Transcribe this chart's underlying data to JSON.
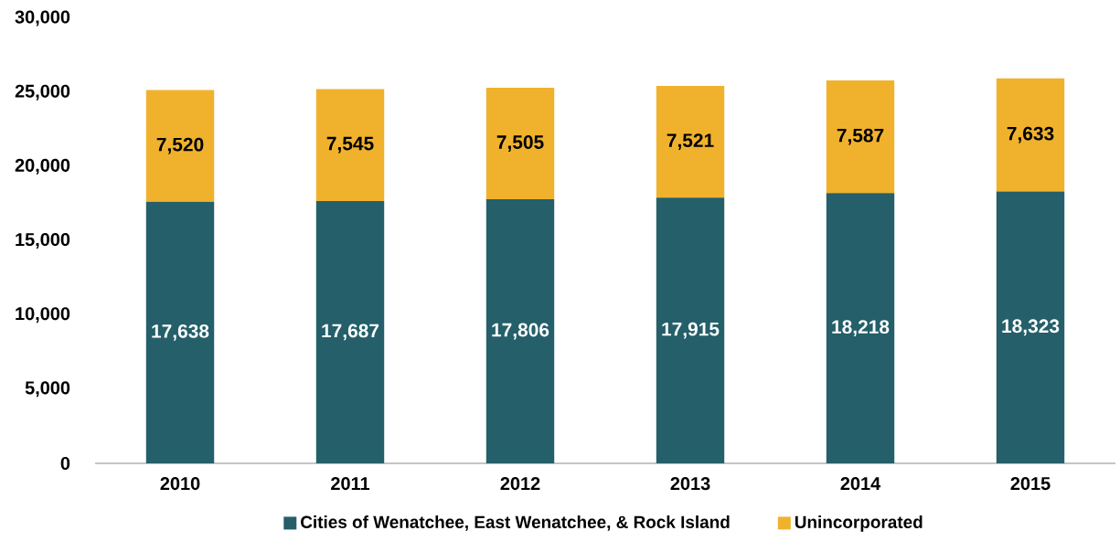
{
  "chart_data": {
    "type": "bar",
    "stacked": true,
    "categories": [
      "2010",
      "2011",
      "2012",
      "2013",
      "2014",
      "2015"
    ],
    "series": [
      {
        "name": "Cities of Wenatchee, East Wenatchee, & Rock Island",
        "color": "#245f6a",
        "values": [
          17638,
          17687,
          17806,
          17915,
          18218,
          18323
        ],
        "value_labels": [
          "17,638",
          "17,687",
          "17,806",
          "17,915",
          "18,218",
          "18,323"
        ]
      },
      {
        "name": "Unincorporated",
        "color": "#f0b22d",
        "values": [
          7520,
          7545,
          7505,
          7521,
          7587,
          7633
        ],
        "value_labels": [
          "7,520",
          "7,545",
          "7,505",
          "7,521",
          "7,587",
          "7,633"
        ]
      }
    ],
    "ylim": [
      0,
      30000
    ],
    "yticks": [
      {
        "value": 0,
        "label": "0"
      },
      {
        "value": 5000,
        "label": "5,000"
      },
      {
        "value": 10000,
        "label": "10,000"
      },
      {
        "value": 15000,
        "label": "15,000"
      },
      {
        "value": 20000,
        "label": "20,000"
      },
      {
        "value": 25000,
        "label": "25,000"
      },
      {
        "value": 30000,
        "label": "30,000"
      }
    ],
    "legend": "bottom"
  }
}
